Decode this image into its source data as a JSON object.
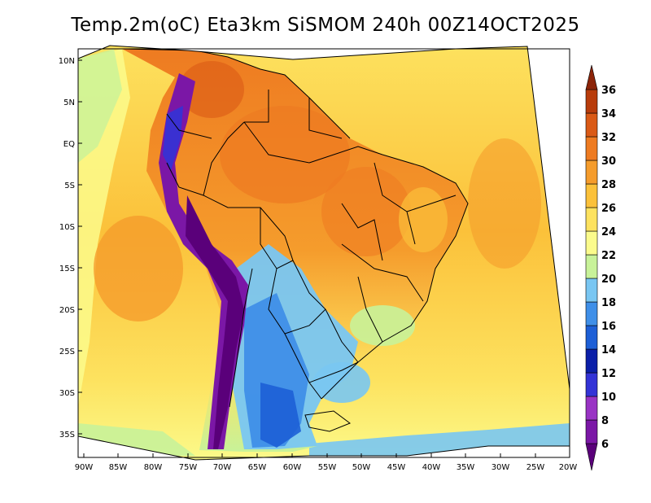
{
  "title": "Temp.2m(oC) Eta3km SiSMOM 240h 00Z14OCT2025",
  "lat_labels": [
    "10N",
    "5N",
    "EQ",
    "5S",
    "10S",
    "15S",
    "20S",
    "25S",
    "30S",
    "35S"
  ],
  "lon_labels": [
    "90W",
    "85W",
    "80W",
    "75W",
    "70W",
    "65W",
    "60W",
    "55W",
    "50W",
    "45W",
    "40W",
    "35W",
    "30W",
    "25W",
    "20W"
  ],
  "colorbar": {
    "labels": [
      "6",
      "8",
      "10",
      "12",
      "14",
      "16",
      "18",
      "20",
      "22",
      "24",
      "26",
      "28",
      "30",
      "32",
      "34",
      "36"
    ],
    "colors": [
      "#5a007a",
      "#7b17a6",
      "#9933c4",
      "#3333d6",
      "#0b1fa8",
      "#1d5fd6",
      "#3f8fe8",
      "#79c6f2",
      "#c8f299",
      "#fbfb8c",
      "#fde25f",
      "#fbc13a",
      "#f59c2c",
      "#ee7b21",
      "#da5a16",
      "#b83c0b",
      "#8c2408"
    ]
  },
  "palette": {
    "ocean_warm": "#fbc13a",
    "ocean_mid": "#fde25f",
    "ocean_cool": "#fbfb8c",
    "land_hot": "#f59c2c",
    "andes_cold": "#7b17a6",
    "south_cool": "#3f8fe8"
  }
}
